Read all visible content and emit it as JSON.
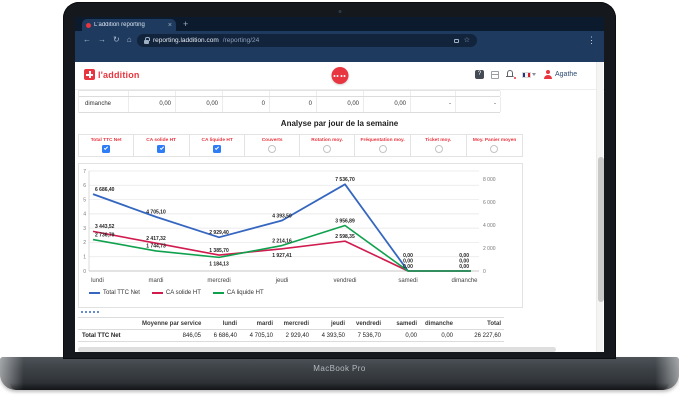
{
  "laptop": {
    "brand": "MacBook Pro"
  },
  "browser": {
    "tab_title": "L'addition reporting",
    "url_domain": "reporting.laddition.com",
    "url_path": "/reporting/24"
  },
  "header": {
    "logo_text": "l'addition",
    "user_name": "Agathe"
  },
  "top_table": {
    "row": [
      "dimanche",
      "0,00",
      "0,00",
      "0",
      "0",
      "0,00",
      "0,00",
      "-",
      "-"
    ]
  },
  "section_title": "Analyse par jour de la semaine",
  "filters": [
    {
      "label": "Total TTC Net",
      "checked": true
    },
    {
      "label": "CA solide HT",
      "checked": true
    },
    {
      "label": "CA liquide HT",
      "checked": true
    },
    {
      "label": "Couverts",
      "checked": false
    },
    {
      "label": "Rotation moy.",
      "checked": false
    },
    {
      "label": "Fréquentation moy.",
      "checked": false
    },
    {
      "label": "Ticket moy.",
      "checked": false
    },
    {
      "label": "Moy. Panier moyen",
      "checked": false
    }
  ],
  "chart_data": {
    "type": "line",
    "title": "Analyse par jour de la semaine",
    "categories": [
      "lundi",
      "mardi",
      "mercredi",
      "jeudi",
      "vendredi",
      "samedi",
      "dimanche"
    ],
    "series": [
      {
        "name": "Total TTC Net",
        "color": "#3567c0",
        "values": [
          6686.4,
          4705.1,
          2929.4,
          4393.5,
          7536.7,
          0,
          0
        ],
        "labels": [
          "6 686,40",
          "4 705,10",
          "2 929,40",
          "4 393,50",
          "7 536,70",
          "0,00",
          "0,00"
        ]
      },
      {
        "name": "CA solide HT",
        "color": "#d11b4f",
        "values": [
          3443.52,
          2417.32,
          1385.7,
          1927.41,
          2598.35,
          0,
          0
        ],
        "labels": [
          "3 443,52",
          "2 417,32",
          "1 385,70",
          "1 927,41",
          "2 598,35",
          "0,00",
          "0,00"
        ]
      },
      {
        "name": "CA liquide HT",
        "color": "#0fa14e",
        "values": [
          2736.79,
          1744.73,
          1184.13,
          2214.16,
          3956.89,
          0,
          0
        ],
        "labels": [
          "2 736,79",
          "1 744,73",
          "1 184,13",
          "2 214,16",
          "3 956,89",
          "0,00",
          "0,00"
        ]
      }
    ],
    "y_axis_left": {
      "ticks": [
        "7",
        "6",
        "5",
        "4",
        "3",
        "2",
        "1",
        "0"
      ]
    },
    "y_axis_right": {
      "max": 8000,
      "ticks": [
        {
          "v": 8000,
          "label": "8 000"
        },
        {
          "v": 6000,
          "label": "6 000"
        },
        {
          "v": 4000,
          "label": "4 000"
        },
        {
          "v": 2000,
          "label": "2 000"
        },
        {
          "v": 0,
          "label": "0"
        }
      ]
    },
    "grid": true,
    "legend_position": "bottom-left"
  },
  "pager_dots": 5,
  "bottom_table": {
    "headers": [
      "",
      "Moyenne par service",
      "lundi",
      "mardi",
      "mercredi",
      "jeudi",
      "vendredi",
      "samedi",
      "dimanche",
      "Total"
    ],
    "rows": [
      [
        "Total TTC Net",
        "846,05",
        "6 686,40",
        "4 705,10",
        "2 929,40",
        "4 393,50",
        "7 536,70",
        "0,00",
        "0,00",
        "26 227,60"
      ]
    ]
  }
}
